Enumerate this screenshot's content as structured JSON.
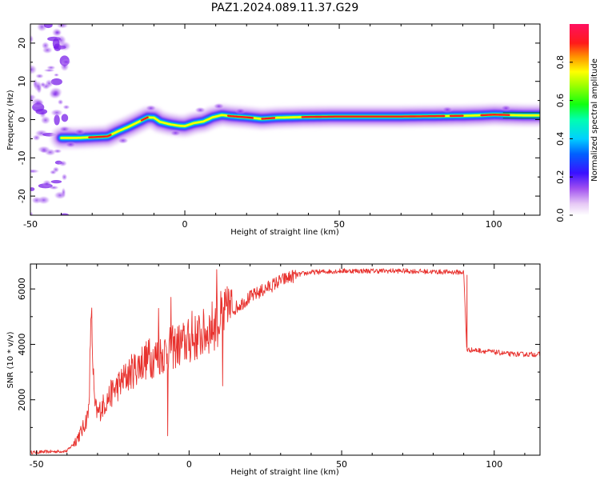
{
  "title": "PAZ1.2024.089.11.37.G29",
  "colors": {
    "snr_line": "#e8322e",
    "ridge_red": "#ff1a1a",
    "axis": "#000000"
  },
  "chart_data": [
    {
      "type": "heatmap",
      "name": "spectral",
      "xlabel": "Height of straight line (km)",
      "ylabel": "Frequency (Hz)",
      "xlim": [
        -50,
        115
      ],
      "ylim": [
        -25,
        25
      ],
      "xticks": [
        -50,
        0,
        50,
        100
      ],
      "yticks": [
        -20,
        -10,
        0,
        10,
        20
      ],
      "colorbar": {
        "label": "Normalized spectral amplitude",
        "range": [
          0,
          1
        ],
        "ticks": [
          "0.0",
          "0.2",
          "0.4",
          "0.6",
          "0.8"
        ],
        "colormap": "white-purple-blue-cyan-green-yellow-red-magenta"
      },
      "ridge": {
        "x": [
          -40,
          -35,
          -30,
          -25,
          -22,
          -18,
          -15,
          -12,
          -10,
          -8,
          -5,
          -2,
          0,
          3,
          6,
          9,
          12,
          15,
          20,
          25,
          30,
          40,
          50,
          60,
          70,
          80,
          90,
          95,
          100,
          105,
          110,
          115
        ],
        "freq": [
          -4.8,
          -4.8,
          -4.6,
          -4.4,
          -3.2,
          -1.8,
          -0.6,
          0.6,
          0.5,
          -0.6,
          -1.2,
          -1.6,
          -1.7,
          -0.9,
          -0.5,
          0.6,
          1.2,
          0.9,
          0.6,
          0.2,
          0.5,
          0.7,
          0.8,
          0.8,
          0.8,
          0.9,
          1.0,
          1.1,
          1.3,
          1.2,
          1.1,
          1.1
        ]
      },
      "noise_region": {
        "x_range": [
          -50,
          -40
        ],
        "freq_range": [
          -25,
          25
        ]
      }
    },
    {
      "type": "line",
      "name": "snr",
      "xlabel": "Height of straight line (km)",
      "ylabel": "SNR (10 * v/v)",
      "xlim": [
        -52,
        115
      ],
      "ylim": [
        0,
        6900
      ],
      "xticks": [
        -50,
        0,
        50,
        100
      ],
      "yticks": [
        2000,
        4000,
        6000
      ],
      "envelope": {
        "x": [
          -52,
          -40,
          -38,
          -35,
          -33,
          -32,
          -31,
          -30,
          -25,
          -20,
          -15,
          -10,
          -5,
          0,
          5,
          10,
          15,
          20,
          25,
          30,
          35,
          40,
          50,
          60,
          70,
          80,
          90,
          91,
          92,
          95,
          100,
          105,
          110,
          115
        ],
        "y": [
          100,
          150,
          400,
          900,
          1500,
          4900,
          1800,
          1500,
          2300,
          2900,
          3400,
          3600,
          3900,
          4100,
          4400,
          4900,
          5300,
          5700,
          6000,
          6300,
          6500,
          6600,
          6650,
          6650,
          6650,
          6620,
          6600,
          3800,
          3800,
          3780,
          3720,
          3650,
          3640,
          3640
        ]
      },
      "spikes": [
        {
          "x": -32,
          "y": 5000
        },
        {
          "x": -13,
          "y": 4200
        },
        {
          "x": -10,
          "y": 5300
        },
        {
          "x": -6,
          "y": 5700
        },
        {
          "x": -7,
          "y": 700
        },
        {
          "x": 1,
          "y": 5200
        },
        {
          "x": 9,
          "y": 6700
        },
        {
          "x": 11,
          "y": 6800
        },
        {
          "x": 11,
          "y": 2500
        },
        {
          "x": 13,
          "y": 6000
        }
      ],
      "step_drop": {
        "x": 91,
        "from": 6500,
        "to": 3800
      }
    }
  ]
}
